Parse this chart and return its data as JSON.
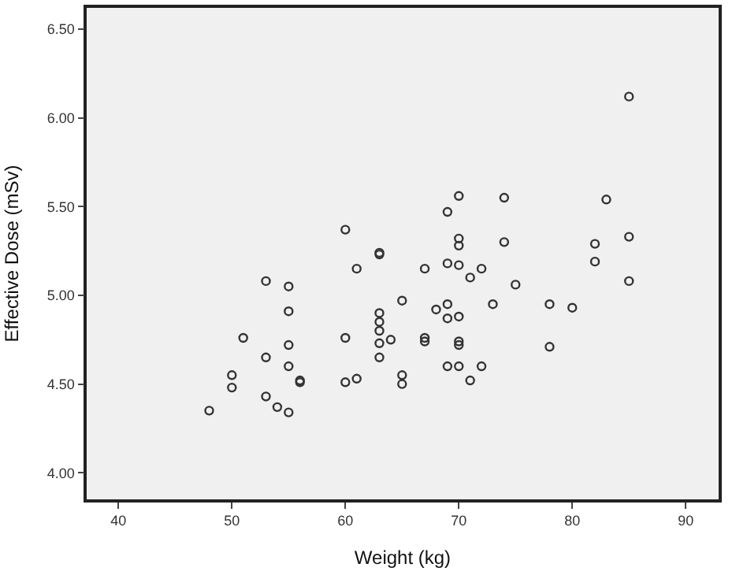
{
  "chart_data": {
    "type": "scatter",
    "xlabel": "Weight (kg)",
    "ylabel": "Effective Dose (mSv)",
    "x": [
      48,
      50,
      50,
      51,
      53,
      53,
      53,
      54,
      55,
      55,
      55,
      55,
      55,
      56,
      56,
      60,
      60,
      60,
      61,
      61,
      63,
      63,
      63,
      63,
      63,
      63,
      63,
      64,
      65,
      65,
      65,
      67,
      67,
      67,
      68,
      69,
      69,
      69,
      69,
      69,
      70,
      70,
      70,
      70,
      70,
      70,
      70,
      70,
      71,
      71,
      72,
      72,
      73,
      74,
      74,
      75,
      78,
      78,
      80,
      82,
      82,
      83,
      85,
      85,
      85
    ],
    "series": [
      {
        "color": "#333333",
        "values": [
          4.35,
          4.55,
          4.48,
          4.76,
          5.08,
          4.65,
          4.43,
          4.37,
          5.05,
          4.91,
          4.72,
          4.6,
          4.34,
          4.52,
          4.51,
          5.37,
          4.76,
          4.51,
          5.15,
          4.53,
          5.24,
          5.23,
          4.9,
          4.85,
          4.8,
          4.73,
          4.65,
          4.75,
          4.97,
          4.55,
          4.5,
          5.15,
          4.76,
          4.74,
          4.92,
          5.47,
          5.18,
          4.95,
          4.87,
          4.6,
          5.56,
          5.32,
          5.28,
          5.17,
          4.88,
          4.74,
          4.72,
          4.6,
          5.1,
          4.52,
          5.15,
          4.6,
          4.95,
          5.55,
          5.3,
          5.06,
          4.95,
          4.71,
          4.93,
          5.29,
          5.19,
          5.54,
          6.12,
          5.33,
          5.08
        ]
      }
    ],
    "xlim": [
      37.2,
      92.9
    ],
    "xticks": [
      40,
      50,
      60,
      70,
      80,
      90
    ],
    "ylim": [
      3.85,
      6.62
    ],
    "yticks": [
      {
        "value": 4,
        "label": "4.00"
      },
      {
        "value": 4.5,
        "label": "4.50"
      },
      {
        "value": 5,
        "label": "5.00"
      },
      {
        "value": 5.5,
        "label": "5.50"
      },
      {
        "value": 6,
        "label": "6.00"
      },
      {
        "value": 6.5,
        "label": "6.50"
      }
    ],
    "marker": "circle",
    "grid": false
  }
}
